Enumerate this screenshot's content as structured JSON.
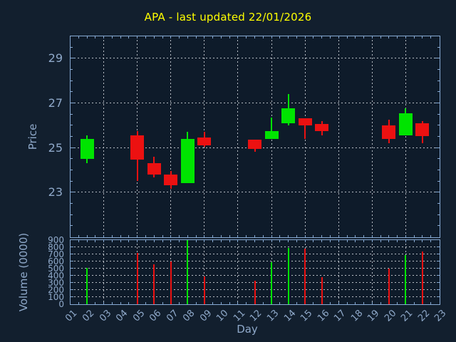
{
  "title": "APA - last updated 22/01/2026",
  "axes": {
    "x": {
      "label": "Day",
      "tick_labels": [
        "01",
        "02",
        "03",
        "04",
        "05",
        "06",
        "07",
        "08",
        "09",
        "10",
        "11",
        "12",
        "13",
        "14",
        "15",
        "16",
        "17",
        "18",
        "19",
        "20",
        "21",
        "22",
        "23"
      ],
      "range": [
        1,
        23
      ],
      "gridline_days": [
        3,
        5,
        7,
        9,
        11,
        13,
        15,
        17,
        19,
        21
      ]
    },
    "price": {
      "label": "Price",
      "tick_labels": [
        "23",
        "25",
        "27",
        "29"
      ],
      "tick_values": [
        23,
        25,
        27,
        29
      ],
      "range": [
        21,
        30
      ]
    },
    "volume": {
      "label": "Volume (0000)",
      "tick_labels": [
        "0",
        "100",
        "200",
        "300",
        "400",
        "500",
        "600",
        "700",
        "800",
        "900"
      ],
      "tick_values": [
        0,
        100,
        200,
        300,
        400,
        500,
        600,
        700,
        800,
        900
      ],
      "range": [
        0,
        900
      ]
    }
  },
  "chart_data": [
    {
      "type": "candlestick",
      "title": "APA - last updated 22/01/2026",
      "xlabel": "Day",
      "ylabel": "Price",
      "xlim": [
        1,
        23
      ],
      "ylim": [
        21,
        30
      ],
      "grid": true,
      "x": [
        2,
        5,
        6,
        7,
        8,
        9,
        12,
        13,
        14,
        15,
        16,
        20,
        21,
        22
      ],
      "open": [
        24.5,
        25.55,
        24.3,
        23.8,
        23.4,
        25.45,
        25.35,
        25.4,
        26.1,
        26.3,
        26.05,
        26.0,
        25.55,
        26.1
      ],
      "high": [
        25.55,
        25.75,
        24.6,
        23.95,
        25.7,
        25.7,
        25.35,
        26.35,
        27.4,
        26.3,
        26.2,
        26.25,
        26.75,
        26.2
      ],
      "low": [
        24.3,
        23.5,
        23.65,
        23.15,
        23.4,
        25.05,
        24.8,
        25.4,
        26.0,
        25.4,
        25.55,
        25.2,
        25.55,
        25.2
      ],
      "close": [
        25.4,
        24.45,
        23.8,
        23.3,
        25.4,
        25.1,
        24.95,
        25.75,
        26.75,
        26.0,
        25.75,
        25.4,
        26.55,
        25.5
      ]
    },
    {
      "type": "bar",
      "xlabel": "Day",
      "ylabel": "Volume (0000)",
      "xlim": [
        1,
        23
      ],
      "ylim": [
        0,
        900
      ],
      "grid": true,
      "x": [
        2,
        5,
        6,
        7,
        8,
        9,
        12,
        13,
        14,
        15,
        16,
        20,
        21,
        22
      ],
      "values": [
        510,
        720,
        560,
        600,
        900,
        390,
        330,
        590,
        790,
        780,
        380,
        500,
        690,
        740
      ],
      "direction": [
        "up",
        "down",
        "down",
        "down",
        "up",
        "down",
        "down",
        "up",
        "up",
        "down",
        "down",
        "down",
        "up",
        "down"
      ]
    }
  ],
  "colors": {
    "background": "#121f2e",
    "plot_background": "#0e1b2a",
    "frame": "#86a9d2",
    "grid": "#b7bdc4",
    "tick_text": "#8fa9ca",
    "title_text": "#ffff00",
    "up": "#00e400",
    "down": "#ec1111"
  }
}
